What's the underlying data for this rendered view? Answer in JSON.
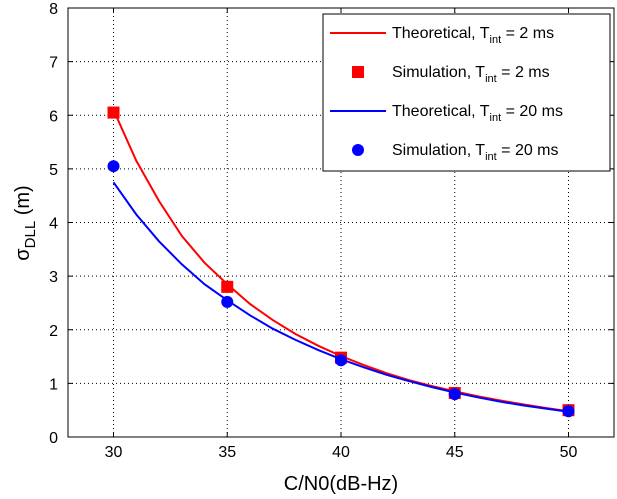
{
  "chart_data": {
    "type": "line",
    "xlabel": "C/N0(dB-Hz)",
    "ylabel": {
      "base": "σ",
      "sub": "DLL",
      "suffix": " (m)"
    },
    "xlim": [
      28,
      52
    ],
    "ylim": [
      0,
      8
    ],
    "xticks": [
      30,
      35,
      40,
      45,
      50
    ],
    "yticks": [
      0,
      1,
      2,
      3,
      4,
      5,
      6,
      7,
      8
    ],
    "grid": true,
    "legend_position": "top-right",
    "series": [
      {
        "legend": {
          "prefix": "Theoretical, T",
          "sub": "int",
          "suffix": " = 2 ms"
        },
        "kind": "line",
        "color": "#ff0000",
        "x": [
          30,
          31,
          32,
          33,
          34,
          35,
          36,
          37,
          38,
          39,
          40,
          41,
          42,
          43,
          44,
          45,
          46,
          47,
          48,
          49,
          50
        ],
        "y": [
          6.1,
          5.15,
          4.4,
          3.75,
          3.25,
          2.85,
          2.48,
          2.18,
          1.92,
          1.7,
          1.51,
          1.34,
          1.19,
          1.06,
          0.95,
          0.85,
          0.76,
          0.68,
          0.61,
          0.54,
          0.48
        ]
      },
      {
        "legend": {
          "prefix": "Simulation, T",
          "sub": "int",
          "suffix": " = 2 ms"
        },
        "kind": "square",
        "color": "#ff0000",
        "x": [
          30,
          35,
          40,
          45,
          50
        ],
        "y": [
          6.05,
          2.8,
          1.48,
          0.82,
          0.5
        ]
      },
      {
        "legend": {
          "prefix": "Theoretical, T",
          "sub": "int",
          "suffix": " = 20 ms"
        },
        "kind": "line",
        "color": "#0000ff",
        "x": [
          30,
          31,
          32,
          33,
          34,
          35,
          36,
          37,
          38,
          39,
          40,
          41,
          42,
          43,
          44,
          45,
          46,
          47,
          48,
          49,
          50
        ],
        "y": [
          4.75,
          4.15,
          3.65,
          3.22,
          2.85,
          2.55,
          2.27,
          2.02,
          1.81,
          1.62,
          1.45,
          1.3,
          1.16,
          1.04,
          0.93,
          0.83,
          0.74,
          0.66,
          0.59,
          0.53,
          0.47
        ]
      },
      {
        "legend": {
          "prefix": "Simulation, T",
          "sub": "int",
          "suffix": " = 20 ms"
        },
        "kind": "circle",
        "color": "#0000ff",
        "x": [
          30,
          35,
          40,
          45,
          50
        ],
        "y": [
          5.05,
          2.52,
          1.43,
          0.8,
          0.48
        ]
      }
    ]
  }
}
